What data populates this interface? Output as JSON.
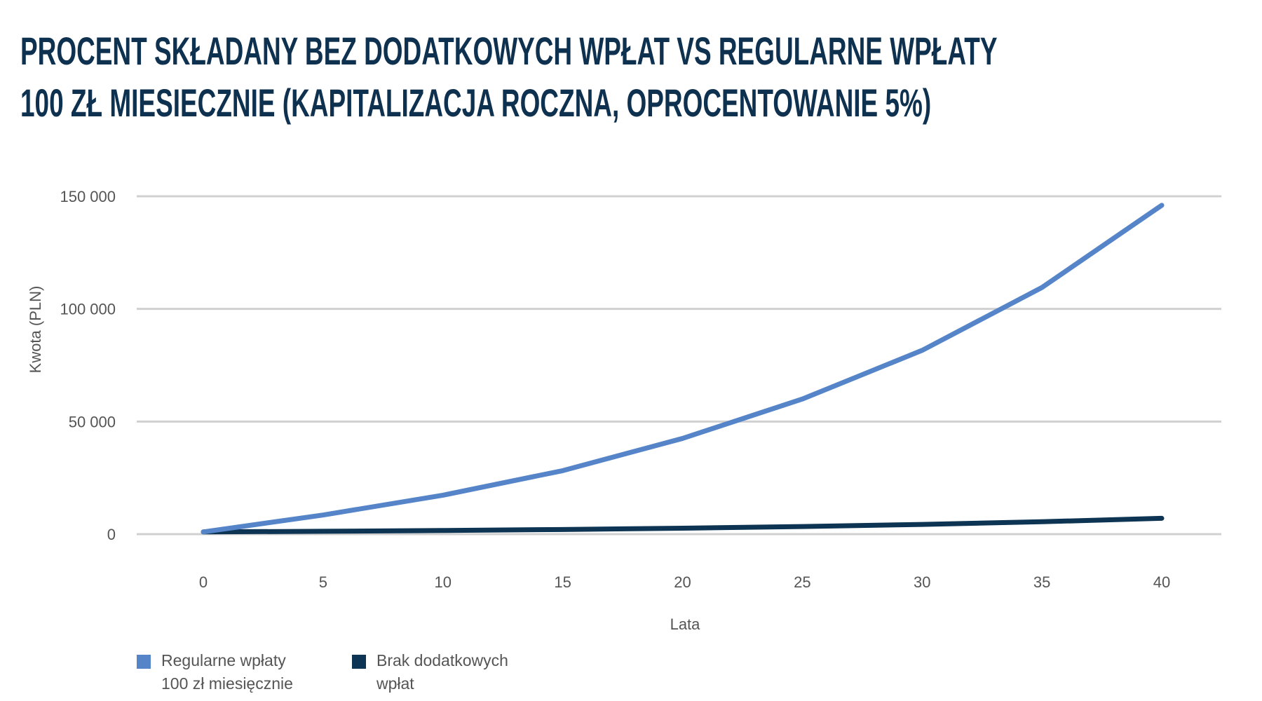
{
  "chart_data": {
    "type": "line",
    "title": [
      "PROCENT SKŁADANY BEZ DODATKOWYCH WPŁAT VS REGULARNE WPŁATY",
      "100 ZŁ MIESIECZNIE (KAPITALIZACJA ROCZNA, OPROCENTOWANIE 5%)"
    ],
    "xlabel": "Lata",
    "ylabel": "Kwota (PLN)",
    "x": [
      0,
      5,
      10,
      15,
      20,
      25,
      30,
      35,
      40
    ],
    "x_ticks": [
      "0",
      "5",
      "10",
      "15",
      "20",
      "25",
      "30",
      "35",
      "40"
    ],
    "y_ticks": [
      {
        "value": 0,
        "label": "0"
      },
      {
        "value": 50000,
        "label": "50 000"
      },
      {
        "value": 100000,
        "label": "100 000"
      },
      {
        "value": 150000,
        "label": "150 000"
      }
    ],
    "xlim": [
      0,
      40
    ],
    "ylim": [
      0,
      150000
    ],
    "grid": "horizontal",
    "legend_position": "bottom-left",
    "series": [
      {
        "name": "Regularne wpłaty 100 zł miesięcznie",
        "legend_lines": [
          "Regularne wpłaty",
          "100 zł miesięcznie"
        ],
        "color": "#5585c8",
        "values": [
          1000,
          8500,
          17300,
          28200,
          42500,
          60000,
          81600,
          109500,
          146000
        ]
      },
      {
        "name": "Brak dodatkowych wpłat",
        "legend_lines": [
          "Brak dodatkowych",
          "wpłat"
        ],
        "color": "#0d3553",
        "values": [
          1000,
          1276,
          1629,
          2079,
          2653,
          3386,
          4322,
          5516,
          7040
        ]
      }
    ]
  }
}
